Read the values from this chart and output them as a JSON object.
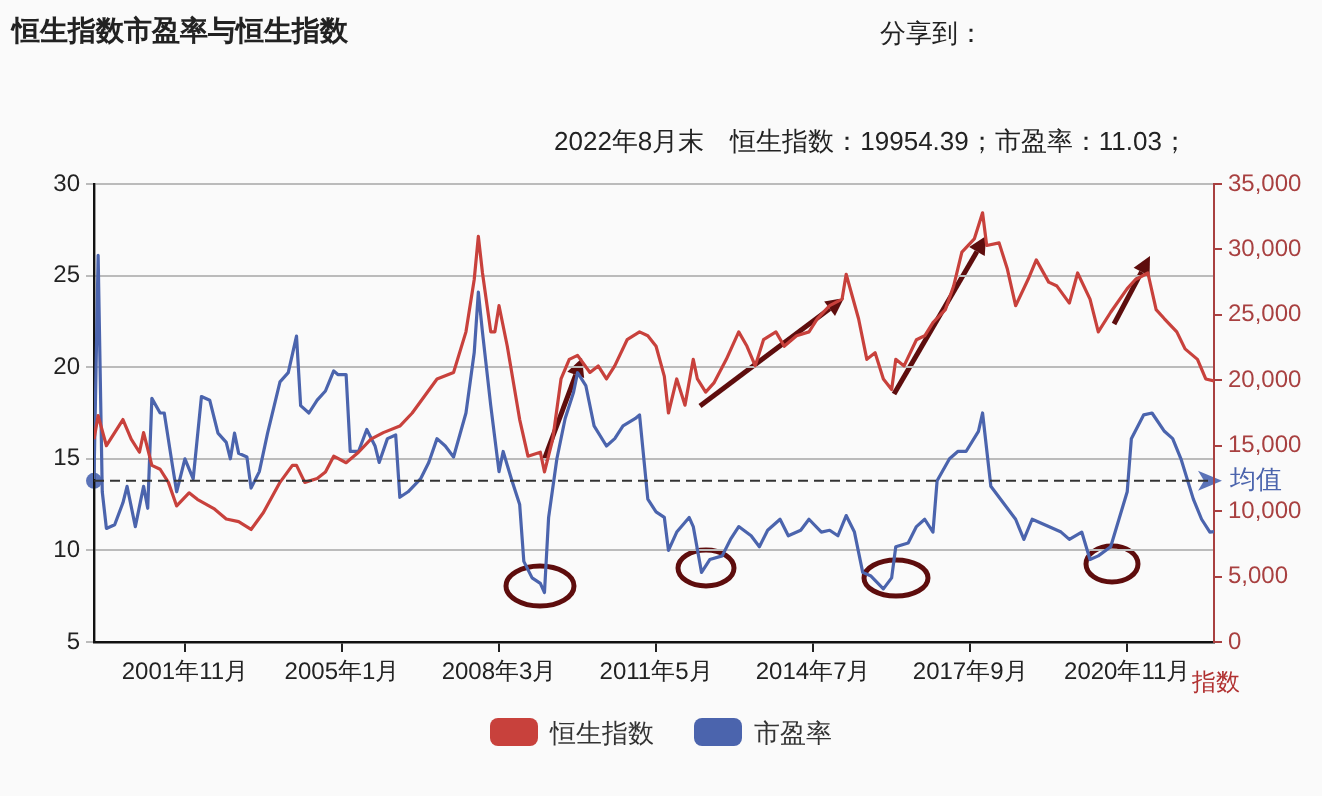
{
  "chart_data": {
    "type": "line",
    "title": "恒生指数市盈率与恒生指数",
    "annotations": [
      "2022年8月末　恒生指数：19954.39；市盈率：11.03；",
      "分享到："
    ],
    "y2label": "指数",
    "xlim": [
      "2000-01",
      "2022-08"
    ],
    "xticks": [
      {
        "value": "2001-11",
        "label": "2001年11月"
      },
      {
        "value": "2005-01",
        "label": "2005年1月"
      },
      {
        "value": "2008-03",
        "label": "2008年3月"
      },
      {
        "value": "2011-05",
        "label": "2011年5月"
      },
      {
        "value": "2014-07",
        "label": "2014年7月"
      },
      {
        "value": "2017-09",
        "label": "2017年9月"
      },
      {
        "value": "2020-11",
        "label": "2020年11月"
      }
    ],
    "ylim": [
      5,
      30
    ],
    "yticks": [
      5,
      10,
      15,
      20,
      25,
      30
    ],
    "y2lim": [
      0,
      35000
    ],
    "y2ticks": [
      {
        "value": 0,
        "label": "0"
      },
      {
        "value": 5000,
        "label": "5,000"
      },
      {
        "value": 10000,
        "label": "10,000"
      },
      {
        "value": 15000,
        "label": "15,000"
      },
      {
        "value": 20000,
        "label": "20,000"
      },
      {
        "value": 25000,
        "label": "25,000"
      },
      {
        "value": 30000,
        "label": "30,000"
      },
      {
        "value": 35000,
        "label": "35,000"
      }
    ],
    "grid": "y",
    "legend": "bottom",
    "marker": "none",
    "ref_lines": [
      {
        "axis": "y",
        "value": 13.8,
        "label": "均值",
        "line_style": "dashed",
        "color": "#333333"
      }
    ],
    "series": [
      {
        "name": "恒生指数",
        "color": "#c8413c",
        "axis": "y2",
        "x": [
          "2000-01",
          "2000-02",
          "2000-04",
          "2000-06",
          "2000-08",
          "2000-10",
          "2000-12",
          "2001-01",
          "2001-03",
          "2001-05",
          "2001-07",
          "2001-09",
          "2001-12",
          "2002-02",
          "2002-06",
          "2002-09",
          "2002-12",
          "2003-03",
          "2003-06",
          "2003-10",
          "2004-01",
          "2004-02",
          "2004-04",
          "2004-07",
          "2004-09",
          "2004-11",
          "2005-02",
          "2005-05",
          "2005-08",
          "2005-11",
          "2006-03",
          "2006-06",
          "2006-09",
          "2006-12",
          "2007-04",
          "2007-07",
          "2007-09",
          "2007-10",
          "2007-11",
          "2008-01",
          "2008-02",
          "2008-03",
          "2008-05",
          "2008-08",
          "2008-10",
          "2009-01",
          "2009-02",
          "2009-04",
          "2009-06",
          "2009-08",
          "2009-10",
          "2010-01",
          "2010-03",
          "2010-05",
          "2010-07",
          "2010-10",
          "2011-01",
          "2011-03",
          "2011-05",
          "2011-07",
          "2011-08",
          "2011-10",
          "2011-12",
          "2012-02",
          "2012-03",
          "2012-05",
          "2012-07",
          "2012-10",
          "2013-01",
          "2013-03",
          "2013-05",
          "2013-07",
          "2013-10",
          "2013-12",
          "2014-03",
          "2014-06",
          "2014-08",
          "2014-11",
          "2015-02",
          "2015-03",
          "2015-06",
          "2015-08",
          "2015-10",
          "2015-12",
          "2016-02",
          "2016-03",
          "2016-05",
          "2016-08",
          "2016-10",
          "2016-12",
          "2017-03",
          "2017-05",
          "2017-07",
          "2017-10",
          "2017-12",
          "2018-01",
          "2018-04",
          "2018-06",
          "2018-08",
          "2018-11",
          "2019-01",
          "2019-04",
          "2019-06",
          "2019-09",
          "2019-11",
          "2020-02",
          "2020-04",
          "2020-07",
          "2020-11",
          "2021-01",
          "2021-04",
          "2021-06",
          "2021-08",
          "2021-11",
          "2022-01",
          "2022-04",
          "2022-06",
          "2022-08"
        ],
        "values": [
          15500,
          17300,
          15000,
          16000,
          17000,
          15500,
          14500,
          16000,
          13500,
          13200,
          12200,
          10400,
          11400,
          10900,
          10200,
          9400,
          9200,
          8600,
          9900,
          12200,
          13500,
          13500,
          12200,
          12500,
          13000,
          14200,
          13700,
          14500,
          15500,
          16000,
          16500,
          17500,
          18800,
          20100,
          20600,
          23700,
          27700,
          31000,
          28200,
          23700,
          23700,
          25700,
          22600,
          17000,
          14200,
          14500,
          13000,
          15500,
          20100,
          21600,
          21900,
          20600,
          21100,
          20100,
          21100,
          23100,
          23700,
          23400,
          22600,
          20300,
          17500,
          20100,
          18100,
          21600,
          20100,
          19100,
          19800,
          21600,
          23700,
          22600,
          21100,
          23100,
          23700,
          22600,
          23400,
          23700,
          24700,
          25700,
          26200,
          28100,
          24700,
          21600,
          22100,
          20100,
          19300,
          21600,
          21100,
          23100,
          23400,
          24400,
          25400,
          27200,
          29800,
          30800,
          32800,
          30300,
          30500,
          28500,
          25700,
          27700,
          29200,
          27500,
          27200,
          25900,
          28200,
          26200,
          23700,
          25200,
          27000,
          27700,
          28200,
          25400,
          24700,
          23700,
          22400,
          21600,
          20100,
          19954.39
        ]
      },
      {
        "name": "市盈率",
        "color": "#4b64ad",
        "x": [
          "2000-01",
          "2000-02",
          "2000-03",
          "2000-04",
          "2000-06",
          "2000-08",
          "2000-09",
          "2000-11",
          "2001-01",
          "2001-02",
          "2001-03",
          "2001-05",
          "2001-06",
          "2001-08",
          "2001-09",
          "2001-11",
          "2002-01",
          "2002-03",
          "2002-05",
          "2002-07",
          "2002-09",
          "2002-10",
          "2002-11",
          "2002-12",
          "2003-02",
          "2003-03",
          "2003-05",
          "2003-07",
          "2003-10",
          "2003-12",
          "2004-02",
          "2004-03",
          "2004-05",
          "2004-07",
          "2004-09",
          "2004-11",
          "2004-12",
          "2005-02",
          "2005-03",
          "2005-05",
          "2005-07",
          "2005-09",
          "2005-10",
          "2005-12",
          "2006-02",
          "2006-03",
          "2006-05",
          "2006-08",
          "2006-10",
          "2006-12",
          "2007-02",
          "2007-04",
          "2007-07",
          "2007-09",
          "2007-10",
          "2007-11",
          "2008-01",
          "2008-03",
          "2008-04",
          "2008-06",
          "2008-08",
          "2008-09",
          "2008-11",
          "2009-01",
          "2009-02",
          "2009-03",
          "2009-05",
          "2009-07",
          "2009-09",
          "2009-10",
          "2009-12",
          "2010-02",
          "2010-05",
          "2010-07",
          "2010-09",
          "2010-12",
          "2011-01",
          "2011-03",
          "2011-05",
          "2011-07",
          "2011-08",
          "2011-10",
          "2012-01",
          "2012-02",
          "2012-04",
          "2012-06",
          "2012-09",
          "2012-11",
          "2013-01",
          "2013-04",
          "2013-06",
          "2013-08",
          "2013-11",
          "2014-01",
          "2014-04",
          "2014-06",
          "2014-09",
          "2014-11",
          "2015-01",
          "2015-03",
          "2015-05",
          "2015-07",
          "2015-09",
          "2015-12",
          "2016-02",
          "2016-03",
          "2016-06",
          "2016-08",
          "2016-10",
          "2016-12",
          "2017-01",
          "2017-04",
          "2017-06",
          "2017-08",
          "2017-11",
          "2017-12",
          "2018-02",
          "2018-05",
          "2018-08",
          "2018-10",
          "2018-12",
          "2019-04",
          "2019-07",
          "2019-09",
          "2019-12",
          "2020-02",
          "2020-04",
          "2020-07",
          "2020-09",
          "2020-11",
          "2020-12",
          "2021-03",
          "2021-05",
          "2021-08",
          "2021-10",
          "2021-12",
          "2022-03",
          "2022-05",
          "2022-07",
          "2022-08"
        ],
        "values": [
          13.9,
          26.1,
          13.2,
          11.2,
          11.4,
          12.6,
          13.5,
          11.3,
          13.5,
          12.3,
          18.3,
          17.5,
          17.5,
          14.6,
          13.2,
          15.0,
          13.9,
          18.4,
          18.2,
          16.4,
          15.9,
          15.0,
          16.4,
          15.3,
          15.1,
          13.4,
          14.3,
          16.4,
          19.2,
          19.7,
          21.7,
          17.9,
          17.5,
          18.2,
          18.7,
          19.8,
          19.6,
          19.6,
          15.4,
          15.4,
          16.6,
          15.7,
          14.8,
          16.1,
          16.3,
          12.9,
          13.2,
          13.9,
          14.8,
          16.1,
          15.7,
          15.1,
          17.5,
          20.8,
          24.1,
          21.9,
          17.9,
          14.3,
          15.4,
          13.9,
          12.5,
          9.4,
          8.5,
          8.2,
          7.7,
          11.8,
          15.0,
          17.2,
          18.6,
          19.7,
          19.0,
          16.8,
          15.7,
          16.1,
          16.8,
          17.2,
          17.4,
          12.8,
          12.1,
          11.8,
          10.0,
          11.0,
          11.8,
          11.3,
          8.8,
          9.5,
          9.7,
          10.6,
          11.3,
          10.8,
          10.2,
          11.1,
          11.7,
          10.8,
          11.1,
          11.7,
          11.0,
          11.1,
          10.8,
          11.9,
          11.0,
          8.8,
          8.6,
          7.9,
          8.5,
          10.2,
          10.4,
          11.3,
          11.7,
          11.0,
          13.8,
          15.0,
          15.4,
          15.4,
          16.5,
          17.5,
          13.5,
          12.6,
          11.7,
          10.6,
          11.7,
          11.3,
          11.0,
          10.6,
          11.0,
          9.5,
          9.7,
          10.2,
          11.7,
          13.2,
          16.1,
          17.4,
          17.5,
          16.5,
          16.1,
          15.0,
          12.8,
          11.7,
          11.0,
          11.03
        ]
      }
    ]
  }
}
